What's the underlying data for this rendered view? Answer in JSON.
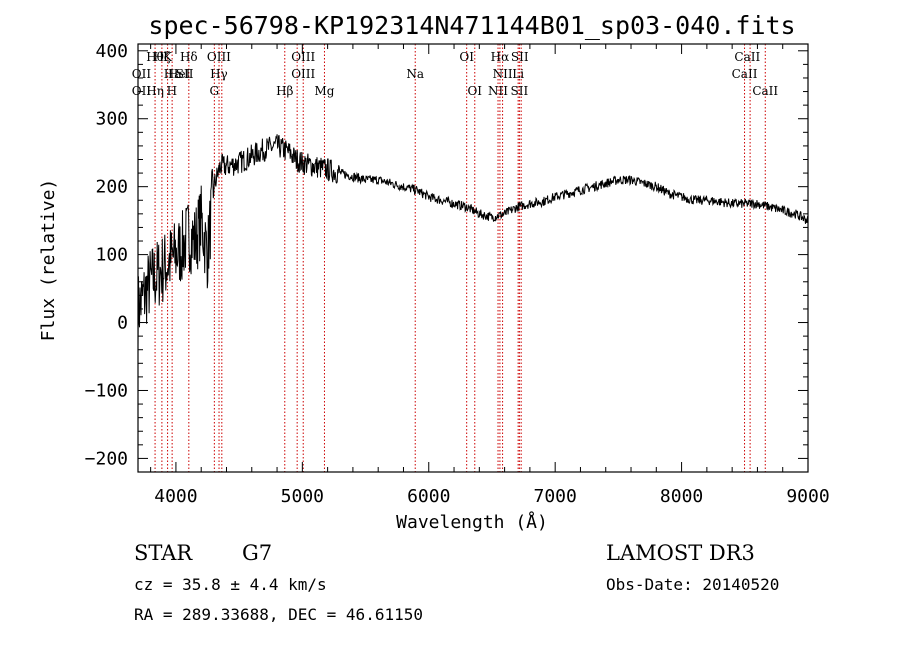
{
  "chart_data": {
    "type": "line",
    "title": "spec-56798-KP192314N471144B01_sp03-040.fits",
    "xlabel": "Wavelength (Å)",
    "ylabel": "Flux (relative)",
    "xlim": [
      3700,
      9000
    ],
    "ylim": [
      -220,
      410
    ],
    "xticks": [
      4000,
      5000,
      6000,
      7000,
      8000,
      9000
    ],
    "yticks": [
      -200,
      -100,
      0,
      100,
      200,
      300,
      400
    ],
    "xtick_labels": [
      "4000",
      "5000",
      "6000",
      "7000",
      "8000",
      "9000"
    ],
    "ytick_labels": [
      "−200",
      "−100",
      "0",
      "100",
      "200",
      "300",
      "400"
    ],
    "series": [
      {
        "x": [
          3700,
          3750,
          3800,
          3850,
          3900,
          3950,
          4000,
          4050,
          4100,
          4150,
          4200,
          4250,
          4300,
          4350,
          4400,
          4500,
          4600,
          4700,
          4800,
          4850,
          4900,
          4950,
          5000,
          5100,
          5200,
          5300,
          5400,
          5500,
          5600,
          5700,
          5800,
          5900,
          6000,
          6100,
          6200,
          6300,
          6400,
          6500,
          6600,
          6700,
          6800,
          6900,
          7000,
          7100,
          7200,
          7300,
          7400,
          7500,
          7600,
          7700,
          7800,
          7900,
          8000,
          8100,
          8200,
          8300,
          8400,
          8500,
          8600,
          8700,
          8800,
          8900,
          9000
        ],
        "y": [
          20,
          40,
          60,
          70,
          80,
          90,
          100,
          110,
          130,
          120,
          150,
          100,
          200,
          230,
          230,
          235,
          245,
          255,
          260,
          255,
          250,
          240,
          235,
          230,
          225,
          220,
          215,
          210,
          210,
          205,
          200,
          195,
          185,
          180,
          175,
          170,
          160,
          155,
          160,
          170,
          175,
          178,
          185,
          190,
          195,
          200,
          205,
          210,
          210,
          205,
          200,
          190,
          185,
          180,
          180,
          178,
          175,
          175,
          175,
          170,
          165,
          160,
          150
        ]
      }
    ],
    "lines": {
      "x": [
        3835,
        3889,
        3934,
        3970,
        4102,
        4304,
        4341,
        4363,
        4861,
        4959,
        5007,
        5175,
        5893,
        6300,
        6364,
        6548,
        6563,
        6584,
        6707,
        6717,
        6731,
        8498,
        8542,
        8662
      ],
      "row1": [
        "Hθ",
        "Hζ",
        "K",
        "Hδ",
        "OIII",
        "OIII",
        "OI",
        "Hα",
        "SII",
        "CaII"
      ],
      "row2": [
        "OII",
        "Hε",
        "HeI",
        "SII",
        "Hγ",
        "OIII",
        "Na",
        "NII",
        "Li",
        "CaII"
      ],
      "row3": [
        "OII",
        "Hη",
        "H",
        "G",
        "Hβ",
        "Mg",
        "OI",
        "NII",
        "SII",
        "CaII"
      ]
    },
    "grid": false,
    "legend": "none"
  },
  "info": {
    "class": "STAR",
    "subclass": "G7",
    "survey": "LAMOST DR3",
    "cz": "cz = 35.8 ± 4.4 km/s",
    "obsdate": "Obs-Date: 20140520",
    "radec": "RA = 289.33688, DEC =  46.61150"
  },
  "colors": {
    "line_marker": "#cc0000",
    "spectrum": "#000000"
  }
}
